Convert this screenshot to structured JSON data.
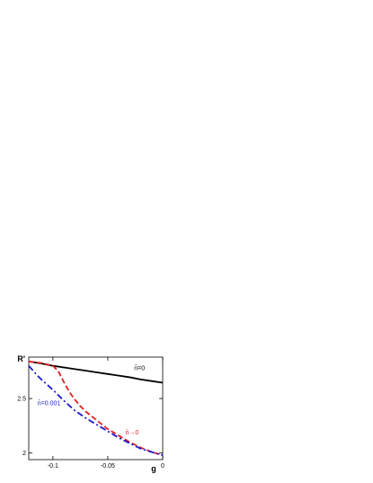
{
  "chart_data": {
    "type": "line",
    "title": "",
    "xlabel": "g",
    "ylabel": "R'",
    "xlim": [
      -0.122,
      0.0
    ],
    "ylim": [
      1.94,
      2.88
    ],
    "x_ticks": [
      -0.1,
      -0.05,
      0
    ],
    "x_tick_labels": [
      "-0.1",
      "-0.05",
      "0"
    ],
    "y_ticks": [
      2,
      2.5
    ],
    "y_tick_labels": [
      "2",
      "2.5"
    ],
    "grid": false,
    "legend": "none",
    "series": [
      {
        "name": "n̄=0",
        "color": "#000000",
        "dash": "solid",
        "x": [
          -0.122,
          -0.11,
          -0.1,
          -0.09,
          -0.08,
          -0.07,
          -0.06,
          -0.05,
          -0.04,
          -0.03,
          -0.02,
          -0.01,
          0.0
        ],
        "y": [
          2.84,
          2.82,
          2.8,
          2.785,
          2.77,
          2.755,
          2.74,
          2.725,
          2.71,
          2.695,
          2.675,
          2.66,
          2.645
        ]
      },
      {
        "name": "n̄→0",
        "color": "#e02020",
        "dash": "dashed",
        "x": [
          -0.122,
          -0.11,
          -0.1,
          -0.095,
          -0.09,
          -0.085,
          -0.08,
          -0.075,
          -0.07,
          -0.06,
          -0.05,
          -0.04,
          -0.03,
          -0.02,
          -0.01,
          0.0
        ],
        "y": [
          2.84,
          2.825,
          2.8,
          2.75,
          2.65,
          2.56,
          2.49,
          2.43,
          2.38,
          2.3,
          2.22,
          2.16,
          2.1,
          2.05,
          2.01,
          1.98
        ]
      },
      {
        "name": "n̄=0.001",
        "color": "#1a1acc",
        "dash": "dashdot",
        "x": [
          -0.122,
          -0.115,
          -0.11,
          -0.1,
          -0.09,
          -0.08,
          -0.07,
          -0.06,
          -0.05,
          -0.04,
          -0.03,
          -0.02,
          -0.01,
          0.0
        ],
        "y": [
          2.8,
          2.72,
          2.67,
          2.58,
          2.48,
          2.39,
          2.32,
          2.26,
          2.2,
          2.14,
          2.09,
          2.04,
          2.01,
          1.98
        ]
      }
    ],
    "annotations": [
      {
        "text": "n̄=0",
        "x": -0.026,
        "y": 2.76,
        "color": "#000000"
      },
      {
        "text": "n̄=0.001",
        "x": -0.114,
        "y": 2.44,
        "color": "#1a1acc"
      },
      {
        "text": "n̄→0",
        "x": -0.034,
        "y": 2.17,
        "color": "#e02020"
      }
    ]
  }
}
